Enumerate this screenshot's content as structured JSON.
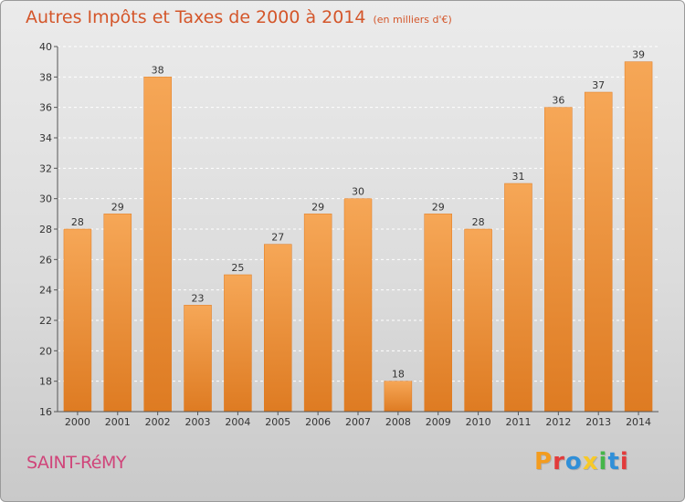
{
  "header": {
    "title": "Autres Impôts et Taxes de 2000 à 2014",
    "subtitle": "(en milliers d'€)"
  },
  "footer": {
    "city": "SAINT-RéMY",
    "logo": "Proxiti",
    "logo_colors": [
      "#f39c1f",
      "#e23b3b",
      "#2f8fd8",
      "#f7c928",
      "#45b649",
      "#2f8fd8",
      "#e23b3b"
    ]
  },
  "colors": {
    "bar_top": "#f6a757",
    "bar_bottom": "#de7b22",
    "axis": "#555555",
    "text": "#333333",
    "title": "#d4562a",
    "city": "#d0457a"
  },
  "chart_data": {
    "type": "bar",
    "categories": [
      "2000",
      "2001",
      "2002",
      "2003",
      "2004",
      "2005",
      "2006",
      "2007",
      "2008",
      "2009",
      "2010",
      "2011",
      "2012",
      "2013",
      "2014"
    ],
    "values": [
      28,
      29,
      38,
      23,
      25,
      27,
      29,
      30,
      18,
      29,
      28,
      31,
      36,
      37,
      39
    ],
    "ylim": [
      16,
      40
    ],
    "yticks": [
      16,
      18,
      20,
      22,
      24,
      26,
      28,
      30,
      32,
      34,
      36,
      38,
      40
    ],
    "grid": true,
    "title": "Autres Impôts et Taxes de 2000 à 2014",
    "subtitle": "(en milliers d'€)",
    "xlabel": "",
    "ylabel": ""
  }
}
